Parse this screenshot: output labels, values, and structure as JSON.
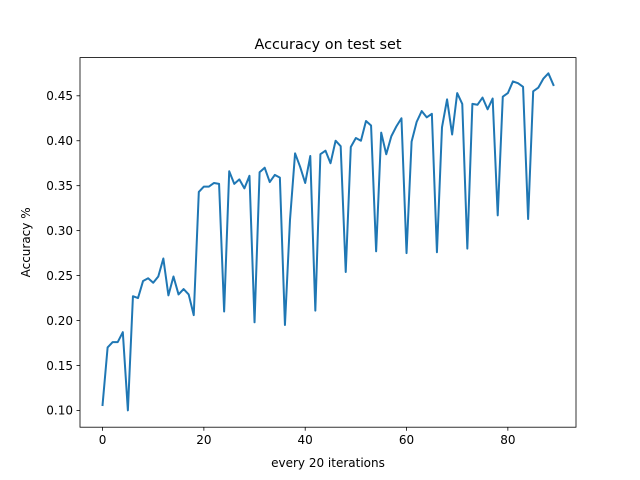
{
  "chart_data": {
    "type": "line",
    "title": "Accuracy on test set",
    "xlabel": "every 20 iterations",
    "ylabel": "Accuracy %",
    "xlim": [
      -4.45,
      93.45
    ],
    "ylim": [
      0.0813,
      0.4925
    ],
    "x_ticks": [
      0,
      20,
      40,
      60,
      80
    ],
    "x_tick_labels": [
      "0",
      "20",
      "40",
      "60",
      "80"
    ],
    "y_ticks": [
      0.1,
      0.15,
      0.2,
      0.25,
      0.3,
      0.35,
      0.4,
      0.45
    ],
    "y_tick_labels": [
      "0.10",
      "0.15",
      "0.20",
      "0.25",
      "0.30",
      "0.35",
      "0.40",
      "0.45"
    ],
    "grid": false,
    "line_color": "#1f77b4",
    "series": [
      {
        "x": [
          0,
          1,
          2,
          3,
          4,
          5,
          6,
          7,
          8,
          9,
          10,
          11,
          12,
          13,
          14,
          15,
          16,
          17,
          18,
          19,
          20,
          21,
          22,
          23,
          24,
          25,
          26,
          27,
          28,
          29,
          30,
          31,
          32,
          33,
          34,
          35,
          36,
          37,
          38,
          39,
          40,
          41,
          42,
          43,
          44,
          45,
          46,
          47,
          48,
          49,
          50,
          51,
          52,
          53,
          54,
          55,
          56,
          57,
          58,
          59,
          60,
          61,
          62,
          63,
          64,
          65,
          66,
          67,
          68,
          69,
          70,
          71,
          72,
          73,
          74,
          75,
          76,
          77,
          78,
          79,
          80,
          81,
          82,
          83,
          84,
          85,
          86,
          87,
          88,
          89
        ],
        "y": [
          0.106,
          0.17,
          0.176,
          0.176,
          0.187,
          0.1,
          0.227,
          0.225,
          0.244,
          0.247,
          0.242,
          0.249,
          0.269,
          0.228,
          0.249,
          0.229,
          0.235,
          0.229,
          0.206,
          0.343,
          0.349,
          0.349,
          0.353,
          0.352,
          0.21,
          0.366,
          0.352,
          0.357,
          0.347,
          0.361,
          0.198,
          0.365,
          0.37,
          0.354,
          0.362,
          0.359,
          0.195,
          0.312,
          0.386,
          0.371,
          0.353,
          0.383,
          0.211,
          0.385,
          0.389,
          0.375,
          0.4,
          0.394,
          0.254,
          0.393,
          0.403,
          0.4,
          0.422,
          0.417,
          0.277,
          0.409,
          0.385,
          0.405,
          0.416,
          0.425,
          0.275,
          0.399,
          0.421,
          0.433,
          0.426,
          0.43,
          0.276,
          0.415,
          0.446,
          0.407,
          0.453,
          0.441,
          0.28,
          0.441,
          0.44,
          0.448,
          0.435,
          0.447,
          0.317,
          0.449,
          0.453,
          0.466,
          0.464,
          0.46,
          0.313,
          0.455,
          0.459,
          0.469,
          0.475,
          0.462
        ]
      }
    ]
  }
}
